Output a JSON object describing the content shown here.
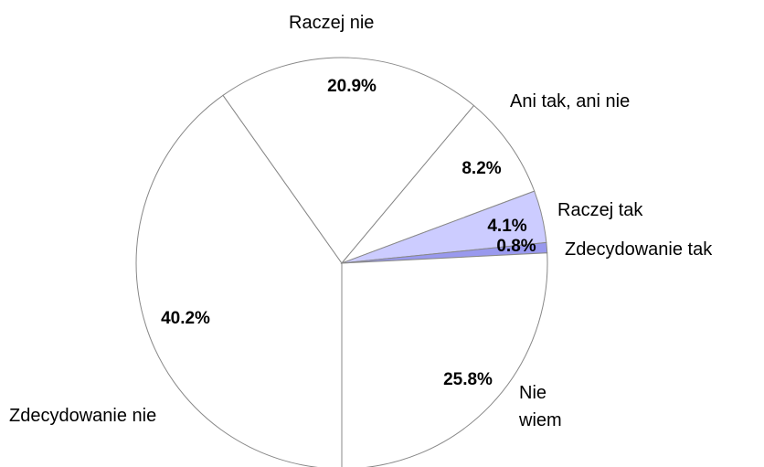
{
  "chart_data": {
    "type": "pie",
    "categories": [
      "Zdecydowanie nie",
      "Raczej nie",
      "Ani tak, ani nie",
      "Raczej tak",
      "Zdecydowanie tak",
      "Nie wiem"
    ],
    "values": [
      40.2,
      20.9,
      8.2,
      4.1,
      0.8,
      25.8
    ],
    "value_labels": [
      "40.2%",
      "20.9%",
      "8.2%",
      "4.1%",
      "0.8%",
      "25.8%"
    ],
    "colors": [
      "#ffffff",
      "#ffffff",
      "#ffffff",
      "#ccccff",
      "#9999ee",
      "#ffffff"
    ]
  }
}
